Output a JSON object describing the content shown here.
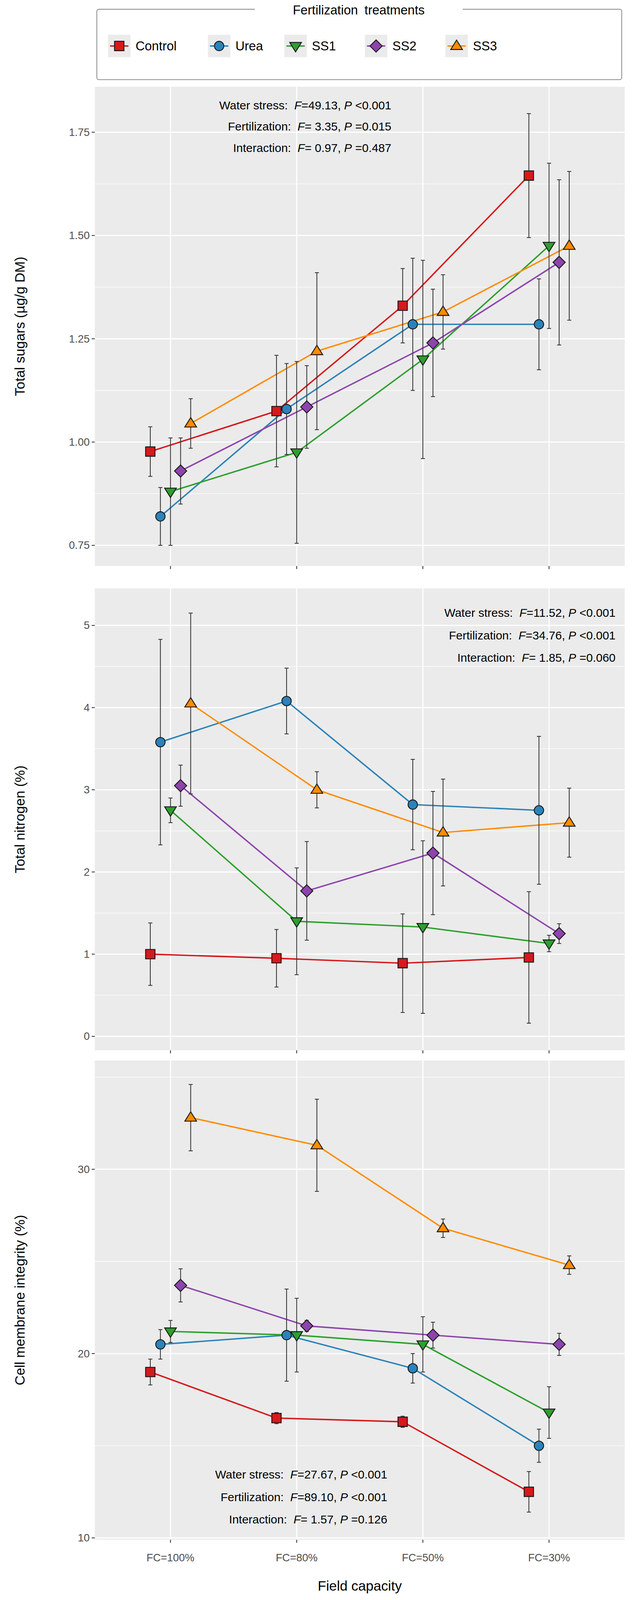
{
  "chart_data": [
    {
      "type": "line",
      "ylabel": "Total sugars (µg/g DM)",
      "legend": "top",
      "legend_title": "Fertilization treatments",
      "grid": true,
      "tick_labels": "y",
      "categories": [
        "FC=100%",
        "FC=80%",
        "FC=50%",
        "FC=30%"
      ],
      "ylim": [
        0.7,
        1.86
      ],
      "yticks": [
        0.75,
        {
          "value": 1.0,
          "label": "1.00"
        },
        1.25,
        {
          "value": 1.5,
          "label": "1.50"
        },
        1.75
      ],
      "annotations": [
        "Water stress:  F=49.13, P <0.001",
        "Fertilization:  F= 3.35, P =0.015",
        "Interaction:  F= 0.97, P =0.487"
      ],
      "series": [
        {
          "name": "Control",
          "color": "#D7191C",
          "marker": "square",
          "values": [
            0.977,
            1.075,
            1.33,
            1.645
          ],
          "errors": [
            0.06,
            0.135,
            0.09,
            0.15
          ]
        },
        {
          "name": "Urea",
          "color": "#2B83BA",
          "marker": "circle",
          "values": [
            0.82,
            1.08,
            1.285,
            1.285
          ],
          "errors": [
            0.07,
            0.11,
            0.16,
            0.11
          ]
        },
        {
          "name": "SS1",
          "color": "#2CA02C",
          "marker": "triangle-down",
          "values": [
            0.88,
            0.975,
            1.2,
            1.475
          ],
          "errors": [
            0.13,
            0.22,
            0.24,
            0.2
          ]
        },
        {
          "name": "SS2",
          "color": "#8E44AD",
          "marker": "diamond",
          "values": [
            0.93,
            1.085,
            1.24,
            1.435
          ],
          "errors": [
            0.08,
            0.1,
            0.13,
            0.2
          ]
        },
        {
          "name": "SS3",
          "color": "#FF8C00",
          "marker": "triangle-up",
          "values": [
            1.045,
            1.22,
            1.315,
            1.475
          ],
          "errors": [
            0.06,
            0.19,
            0.09,
            0.18
          ]
        }
      ]
    },
    {
      "type": "line",
      "ylabel": "Total nitrogen (%)",
      "grid": true,
      "tick_labels": "y",
      "categories": [
        "FC=100%",
        "FC=80%",
        "FC=50%",
        "FC=30%"
      ],
      "ylim": [
        -0.17,
        5.45
      ],
      "yticks": [
        0,
        1,
        2,
        3,
        4,
        5
      ],
      "annotations": [
        "Water stress:  F=11.52, P <0.001",
        "Fertilization:  F=34.76, P <0.001",
        "Interaction:  F= 1.85, P =0.060"
      ],
      "series": [
        {
          "name": "Control",
          "color": "#D7191C",
          "marker": "square",
          "values": [
            1.0,
            0.95,
            0.89,
            0.96
          ],
          "errors": [
            0.38,
            0.35,
            0.6,
            0.8
          ]
        },
        {
          "name": "Urea",
          "color": "#2B83BA",
          "marker": "circle",
          "values": [
            3.58,
            4.08,
            2.82,
            2.75
          ],
          "errors": [
            1.25,
            0.4,
            0.55,
            0.9
          ]
        },
        {
          "name": "SS1",
          "color": "#2CA02C",
          "marker": "triangle-down",
          "values": [
            2.75,
            1.4,
            1.33,
            1.13
          ],
          "errors": [
            0.15,
            0.65,
            1.05,
            0.1
          ]
        },
        {
          "name": "SS2",
          "color": "#8E44AD",
          "marker": "diamond",
          "values": [
            3.05,
            1.77,
            2.23,
            1.25
          ],
          "errors": [
            0.25,
            0.6,
            0.75,
            0.12
          ]
        },
        {
          "name": "SS3",
          "color": "#FF8C00",
          "marker": "triangle-up",
          "values": [
            4.05,
            3.0,
            2.48,
            2.6
          ],
          "errors": [
            1.1,
            0.22,
            0.65,
            0.42
          ]
        }
      ]
    },
    {
      "type": "line",
      "ylabel": "Cell membrane integrity (%)",
      "xlabel": "Field capacity",
      "grid": true,
      "categories": [
        "FC=100%",
        "FC=80%",
        "FC=50%",
        "FC=30%"
      ],
      "ylim": [
        9.9,
        35.9
      ],
      "yticks": [
        10,
        20,
        30
      ],
      "annotations": [
        "Water stress:  F=27.67, P <0.001",
        "Fertilization:  F=89.10, P <0.001",
        "Interaction:  F= 1.57, P =0.126"
      ],
      "series": [
        {
          "name": "Control",
          "color": "#D7191C",
          "marker": "square",
          "values": [
            19.0,
            16.5,
            16.3,
            12.5
          ],
          "errors": [
            0.7,
            0.3,
            0.3,
            1.1
          ]
        },
        {
          "name": "Urea",
          "color": "#2B83BA",
          "marker": "circle",
          "values": [
            20.5,
            21.0,
            19.2,
            15.0
          ],
          "errors": [
            0.8,
            2.5,
            0.8,
            0.9
          ]
        },
        {
          "name": "SS1",
          "color": "#2CA02C",
          "marker": "triangle-down",
          "values": [
            21.2,
            21.0,
            20.5,
            16.8
          ],
          "errors": [
            0.6,
            2.0,
            1.5,
            1.4
          ]
        },
        {
          "name": "SS2",
          "color": "#8E44AD",
          "marker": "diamond",
          "values": [
            23.7,
            21.5,
            21.0,
            20.5
          ],
          "errors": [
            0.9,
            0.3,
            0.7,
            0.6
          ]
        },
        {
          "name": "SS3",
          "color": "#FF8C00",
          "marker": "triangle-up",
          "values": [
            32.8,
            31.3,
            26.8,
            24.8
          ],
          "errors": [
            1.8,
            2.5,
            0.5,
            0.5
          ]
        }
      ]
    }
  ]
}
